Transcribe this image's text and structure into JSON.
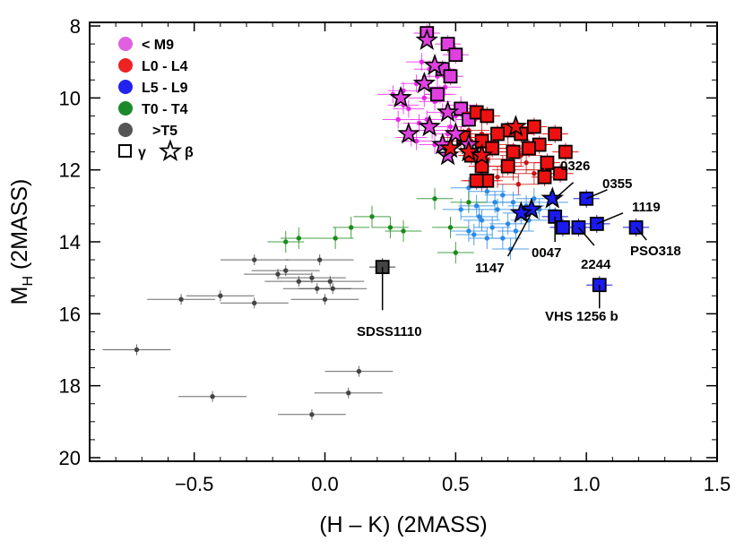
{
  "chart_data": {
    "type": "scatter",
    "xlabel": "(H – K) (2MASS)",
    "ylabel_main": "M",
    "ylabel_sub": "H",
    "ylabel_rest": " (2MASS)",
    "xlim": [
      -0.9,
      1.5
    ],
    "ylim": [
      20.1,
      7.9
    ],
    "x_ticks": [
      -0.5,
      0.0,
      0.5,
      1.0,
      1.5
    ],
    "x_tick_labels": [
      "−0.5",
      "0.0",
      "0.5",
      "1.0",
      "1.5"
    ],
    "y_ticks": [
      8,
      10,
      12,
      14,
      16,
      18,
      20
    ],
    "y_tick_labels": [
      "8",
      "10",
      "12",
      "14",
      "16",
      "18",
      "20"
    ],
    "colors": {
      "M9": "#e040e0",
      "L0L4": "#ee1111",
      "L5L9": "#1a1aee",
      "T0T4": "#1a8a1a",
      "T5": "#444444",
      "M9_field": "#ee22ee",
      "L0L4_field": "#cc1111",
      "L5L9_field": "#2a8ae6",
      "T0T4_field": "#1a8a1a",
      "T5_field": "#444444"
    },
    "legend": {
      "items": [
        {
          "label": "< M9",
          "color": "#e060e0"
        },
        {
          "label": "L0 - L4",
          "color": "#ee2222"
        },
        {
          "label": "L5 - L9",
          "color": "#2222ee"
        },
        {
          "label": "T0 - T4",
          "color": "#1a8a2a"
        },
        {
          "label": ">T5",
          "color": "#555555"
        }
      ],
      "gamma_symbol": "γ",
      "beta_symbol": "β",
      "placement": "top-left"
    },
    "field_series": [
      {
        "class": "M9",
        "points": [
          [
            0.37,
            9.0
          ],
          [
            0.4,
            9.2
          ],
          [
            0.43,
            9.4
          ],
          [
            0.35,
            9.6
          ],
          [
            0.46,
            9.7
          ],
          [
            0.3,
            9.8
          ],
          [
            0.38,
            10.0
          ],
          [
            0.42,
            10.1
          ],
          [
            0.32,
            10.3
          ],
          [
            0.45,
            10.4
          ],
          [
            0.5,
            10.5
          ],
          [
            0.28,
            10.6
          ],
          [
            0.36,
            10.7
          ],
          [
            0.41,
            10.9
          ],
          [
            0.47,
            11.0
          ],
          [
            0.33,
            11.1
          ],
          [
            0.44,
            9.9
          ],
          [
            0.52,
            10.2
          ],
          [
            0.39,
            10.6
          ],
          [
            0.48,
            10.8
          ],
          [
            0.55,
            11.1
          ],
          [
            0.3,
            10.2
          ],
          [
            0.42,
            11.3
          ],
          [
            0.35,
            11.2
          ],
          [
            0.26,
            9.9
          ]
        ]
      },
      {
        "class": "L0L4",
        "points": [
          [
            0.55,
            10.9
          ],
          [
            0.6,
            11.0
          ],
          [
            0.65,
            11.3
          ],
          [
            0.58,
            11.5
          ],
          [
            0.7,
            11.4
          ],
          [
            0.62,
            11.7
          ],
          [
            0.68,
            11.9
          ],
          [
            0.75,
            11.6
          ],
          [
            0.56,
            11.2
          ],
          [
            0.72,
            12.0
          ],
          [
            0.8,
            12.1
          ],
          [
            0.66,
            12.2
          ],
          [
            0.77,
            11.8
          ],
          [
            0.6,
            12.3
          ],
          [
            0.85,
            12.0
          ],
          [
            0.74,
            12.4
          ],
          [
            0.63,
            11.5
          ],
          [
            0.52,
            11.1
          ]
        ]
      },
      {
        "class": "L5L9",
        "points": [
          [
            0.55,
            12.5
          ],
          [
            0.62,
            12.6
          ],
          [
            0.68,
            12.7
          ],
          [
            0.72,
            12.9
          ],
          [
            0.58,
            13.0
          ],
          [
            0.66,
            13.1
          ],
          [
            0.75,
            13.2
          ],
          [
            0.8,
            12.8
          ],
          [
            0.6,
            13.4
          ],
          [
            0.7,
            13.5
          ],
          [
            0.64,
            13.6
          ],
          [
            0.78,
            13.4
          ],
          [
            0.57,
            13.8
          ],
          [
            0.68,
            13.9
          ],
          [
            0.73,
            13.7
          ],
          [
            0.82,
            13.1
          ],
          [
            0.62,
            13.9
          ],
          [
            0.59,
            13.3
          ],
          [
            0.52,
            13.1
          ],
          [
            0.86,
            12.9
          ],
          [
            0.71,
            14.2
          ],
          [
            0.55,
            13.7
          ],
          [
            0.65,
            12.9
          ],
          [
            0.77,
            13.0
          ]
        ]
      },
      {
        "class": "T0T4",
        "points": [
          [
            0.42,
            12.8
          ],
          [
            0.55,
            12.9
          ],
          [
            0.18,
            13.3
          ],
          [
            0.25,
            13.6
          ],
          [
            0.1,
            13.6
          ],
          [
            0.48,
            13.6
          ],
          [
            -0.1,
            13.9
          ],
          [
            0.04,
            13.9
          ],
          [
            -0.15,
            14.0
          ],
          [
            0.5,
            14.3
          ],
          [
            0.3,
            13.7
          ]
        ]
      },
      {
        "class": "T5",
        "points": [
          [
            -0.27,
            14.5
          ],
          [
            -0.02,
            14.5
          ],
          [
            -0.15,
            14.8
          ],
          [
            -0.18,
            14.9
          ],
          [
            -0.05,
            15.0
          ],
          [
            -0.1,
            15.1
          ],
          [
            0.02,
            15.1
          ],
          [
            -0.03,
            15.3
          ],
          [
            0.03,
            15.3
          ],
          [
            -0.4,
            15.5
          ],
          [
            -0.27,
            15.7
          ],
          [
            0.0,
            15.6
          ],
          [
            -0.55,
            15.6
          ],
          [
            -0.72,
            17.0
          ],
          [
            0.13,
            17.6
          ],
          [
            -0.43,
            18.3
          ],
          [
            0.09,
            18.2
          ],
          [
            -0.05,
            18.8
          ]
        ]
      }
    ],
    "gamma_points": [
      {
        "class": "M9",
        "points": [
          [
            0.39,
            8.2
          ],
          [
            0.47,
            8.5
          ],
          [
            0.5,
            8.8
          ],
          [
            0.45,
            9.2
          ],
          [
            0.48,
            9.4
          ],
          [
            0.43,
            9.9
          ],
          [
            0.52,
            10.3
          ],
          [
            0.55,
            10.6
          ]
        ]
      },
      {
        "class": "L0L4",
        "points": [
          [
            0.58,
            10.4
          ],
          [
            0.62,
            10.5
          ],
          [
            0.7,
            10.9
          ],
          [
            0.75,
            11.0
          ],
          [
            0.8,
            10.8
          ],
          [
            0.82,
            11.3
          ],
          [
            0.6,
            11.2
          ],
          [
            0.66,
            11.0
          ],
          [
            0.72,
            11.5
          ],
          [
            0.78,
            11.4
          ],
          [
            0.85,
            11.8
          ],
          [
            0.88,
            11.0
          ],
          [
            0.92,
            11.5
          ],
          [
            0.9,
            12.1
          ],
          [
            0.84,
            12.2
          ],
          [
            0.62,
            12.3
          ],
          [
            0.6,
            11.9
          ],
          [
            0.7,
            11.9
          ],
          [
            0.53,
            11.1
          ],
          [
            0.56,
            11.6
          ],
          [
            0.64,
            11.4
          ],
          [
            0.58,
            12.3
          ]
        ]
      },
      {
        "class": "L5L9",
        "points": [
          [
            1.0,
            12.8
          ],
          [
            0.88,
            13.3
          ],
          [
            0.91,
            13.6
          ],
          [
            0.97,
            13.6
          ],
          [
            1.04,
            13.5
          ],
          [
            1.19,
            13.6
          ],
          [
            1.05,
            15.2
          ]
        ]
      },
      {
        "class": "T5",
        "points": [
          [
            0.22,
            14.7
          ]
        ]
      }
    ],
    "beta_points": [
      {
        "class": "M9",
        "points": [
          [
            0.39,
            8.4
          ],
          [
            0.42,
            9.1
          ],
          [
            0.38,
            9.6
          ],
          [
            0.29,
            10.0
          ],
          [
            0.47,
            10.4
          ],
          [
            0.4,
            10.8
          ],
          [
            0.32,
            11.0
          ],
          [
            0.5,
            11.0
          ],
          [
            0.45,
            11.3
          ],
          [
            0.55,
            11.3
          ],
          [
            0.47,
            11.6
          ]
        ]
      },
      {
        "class": "L0L4",
        "points": [
          [
            0.73,
            10.8
          ],
          [
            0.55,
            11.5
          ],
          [
            0.48,
            11.4
          ],
          [
            0.6,
            11.6
          ]
        ]
      },
      {
        "class": "L5L9",
        "points": [
          [
            0.87,
            12.8
          ],
          [
            0.79,
            13.1
          ],
          [
            0.75,
            13.2
          ]
        ]
      }
    ],
    "annotations": [
      {
        "label": "0326"
      },
      {
        "label": "0355"
      },
      {
        "label": "1119"
      },
      {
        "label": "1147"
      },
      {
        "label": "0047"
      },
      {
        "label": "2244"
      },
      {
        "label": "PSO318"
      },
      {
        "label": "VHS 1256 b"
      },
      {
        "label": "SDSS1110"
      }
    ]
  }
}
